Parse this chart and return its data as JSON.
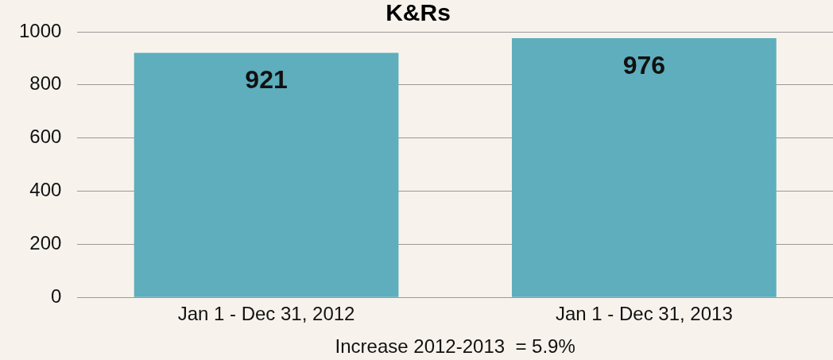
{
  "chart_data": {
    "type": "bar",
    "title": "K&Rs",
    "categories": [
      "Jan 1 - Dec 31, 2012",
      "Jan 1 - Dec 31, 2013"
    ],
    "values": [
      921,
      976
    ],
    "color": "#5eaebd",
    "ylim": [
      0,
      1000
    ],
    "yticks": [
      0,
      200,
      400,
      600,
      800,
      1000
    ],
    "grid": "y",
    "data_labels": true,
    "annotations": [
      "Increase 2012-2013  = 5.9%"
    ]
  }
}
